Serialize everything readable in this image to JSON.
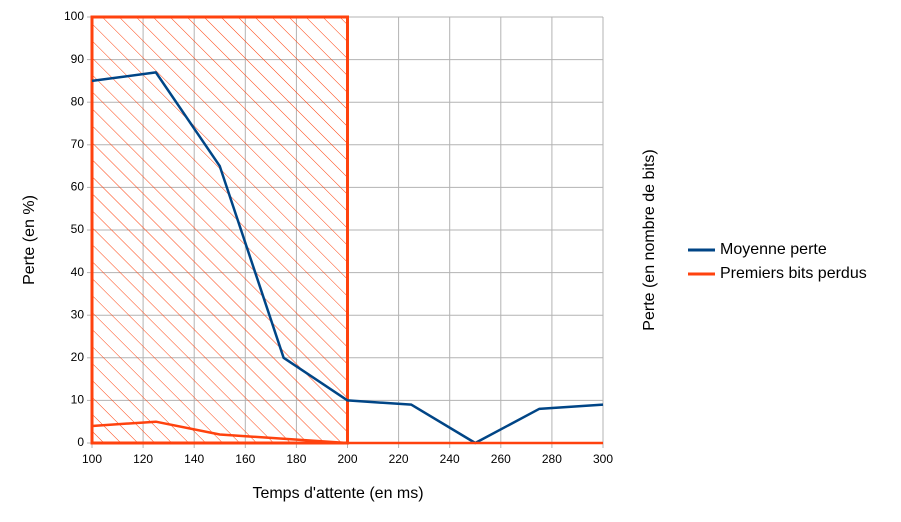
{
  "chart_data": {
    "type": "line",
    "x_label": "Temps d'attente (en ms)",
    "y_label": "Perte (en %)",
    "y2_label": "Perte (en nombre de bits)",
    "x": [
      100,
      125,
      150,
      175,
      200,
      225,
      250,
      275,
      300
    ],
    "series": [
      {
        "name": "Moyenne perte",
        "color": "#004586",
        "values": [
          85,
          87,
          65,
          20,
          10,
          9,
          0,
          8,
          9
        ]
      },
      {
        "name": "Premiers bits perdus",
        "color": "#ff420e",
        "values": [
          4,
          5,
          2,
          1,
          0,
          0,
          0,
          0,
          0
        ]
      }
    ],
    "xlim": [
      100,
      300
    ],
    "xticks": [
      100,
      120,
      140,
      160,
      180,
      200,
      220,
      240,
      260,
      280,
      300
    ],
    "ylim": [
      0,
      100
    ],
    "yticks": [
      0,
      10,
      20,
      30,
      40,
      50,
      60,
      70,
      80,
      90,
      100
    ],
    "shaded_region": {
      "x": [
        100,
        200
      ],
      "color": "#ff420e"
    },
    "grid": true,
    "legend": "right"
  }
}
